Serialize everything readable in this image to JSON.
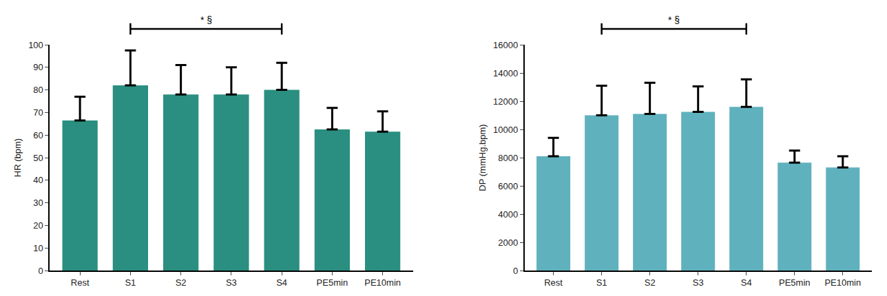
{
  "chart_data": [
    {
      "type": "bar",
      "categories": [
        "Rest",
        "S1",
        "S2",
        "S3",
        "S4",
        "PE5min",
        "PE10min"
      ],
      "values": [
        66.5,
        82,
        78,
        78,
        80,
        62.5,
        61.5
      ],
      "errors": [
        10.5,
        15.5,
        13,
        12,
        12,
        9.5,
        9
      ],
      "color": "#2a8f80",
      "y_label": "HR (bpm)",
      "ylim": [
        0,
        100
      ],
      "yticks": [
        0,
        10,
        20,
        30,
        40,
        50,
        60,
        70,
        80,
        90,
        100
      ],
      "grid": false,
      "annotations": [
        {
          "text": "* §",
          "from": "S1",
          "to": "S4"
        }
      ]
    },
    {
      "type": "bar",
      "categories": [
        "Rest",
        "S1",
        "S2",
        "S3",
        "S4",
        "PE5min",
        "PE10min"
      ],
      "values": [
        8100,
        11000,
        11100,
        11250,
        11600,
        7650,
        7300
      ],
      "errors": [
        1300,
        2100,
        2200,
        1800,
        1950,
        850,
        800
      ],
      "color": "#5fb1bd",
      "y_label": "DP (mmHg.bpm)",
      "ylim": [
        0,
        16000
      ],
      "yticks": [
        0,
        2000,
        4000,
        6000,
        8000,
        10000,
        12000,
        14000,
        16000
      ],
      "grid": false,
      "annotations": [
        {
          "text": "* §",
          "from": "S1",
          "to": "S4"
        }
      ]
    }
  ]
}
